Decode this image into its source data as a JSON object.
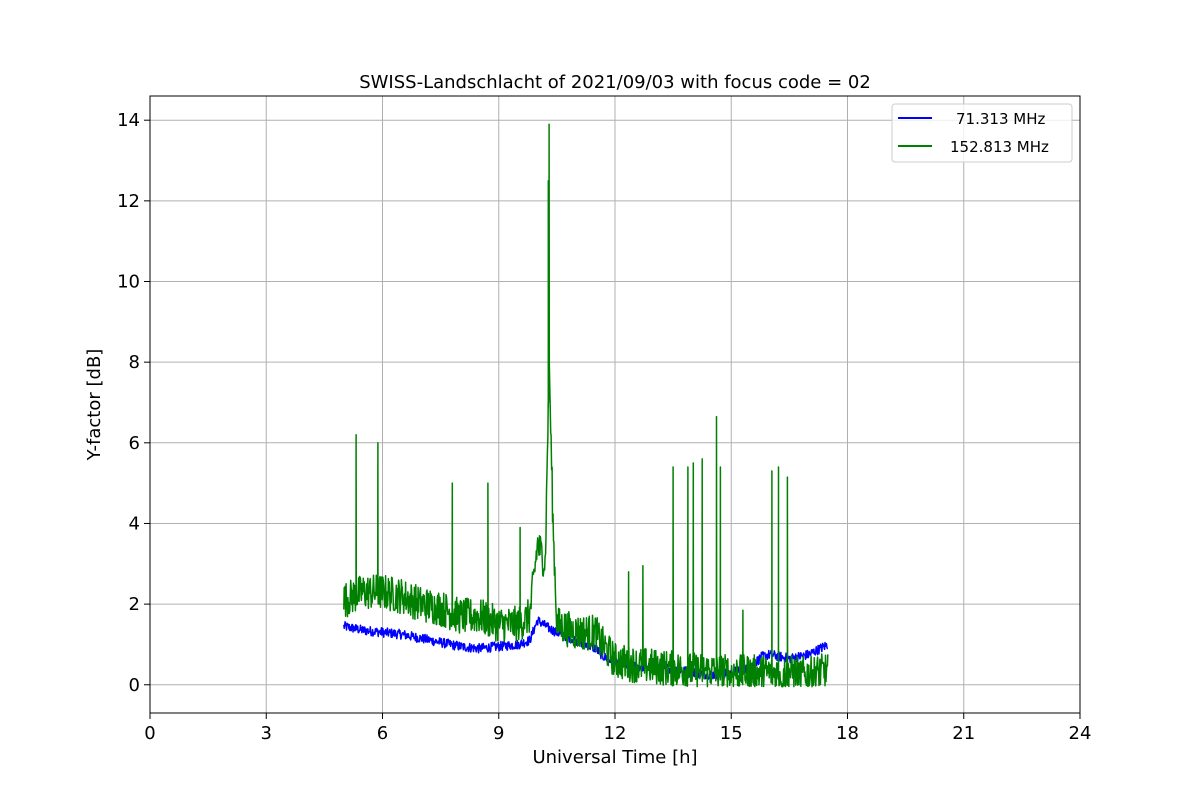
{
  "chart_data": {
    "type": "line",
    "title": "SWISS-Landschlacht of 2021/09/03 with focus code = 02",
    "xlabel": "Universal Time [h]",
    "ylabel": "Y-factor [dB]",
    "xlim": [
      0,
      24
    ],
    "ylim": [
      -0.7,
      14.6
    ],
    "xticks": [
      0,
      3,
      6,
      9,
      12,
      15,
      18,
      21,
      24
    ],
    "yticks": [
      0,
      2,
      4,
      6,
      8,
      10,
      12,
      14
    ],
    "grid": true,
    "legend_position": "top-right",
    "series": [
      {
        "name": "71.313 MHz",
        "color": "#0000ff",
        "noise_amplitude": 0.12,
        "x": [
          5.0,
          5.5,
          6.0,
          6.5,
          7.0,
          7.5,
          8.0,
          8.5,
          9.0,
          9.5,
          9.8,
          10.0,
          10.3,
          10.5,
          11.0,
          11.5,
          11.7,
          12.0,
          12.5,
          13.0,
          13.5,
          14.0,
          14.5,
          15.0,
          15.5,
          15.8,
          16.0,
          16.5,
          17.0,
          17.5
        ],
        "y": [
          1.45,
          1.35,
          1.3,
          1.25,
          1.15,
          1.05,
          0.95,
          0.9,
          0.95,
          1.0,
          1.1,
          1.6,
          1.4,
          1.3,
          1.1,
          0.9,
          0.7,
          0.55,
          0.45,
          0.45,
          0.4,
          0.3,
          0.25,
          0.3,
          0.45,
          0.7,
          0.75,
          0.65,
          0.75,
          1.0
        ]
      },
      {
        "name": "152.813 MHz",
        "color": "#008000",
        "noise_amplitude": 0.45,
        "x": [
          5.0,
          5.5,
          6.0,
          6.5,
          7.0,
          7.5,
          8.0,
          8.5,
          9.0,
          9.5,
          9.8,
          10.0,
          10.2,
          10.3,
          10.4,
          10.5,
          11.0,
          11.5,
          11.6,
          12.0,
          12.5,
          13.0,
          13.5,
          14.0,
          14.5,
          15.0,
          15.5,
          16.0,
          16.5,
          17.0,
          17.5
        ],
        "y": [
          2.1,
          2.3,
          2.3,
          2.2,
          2.0,
          1.9,
          1.7,
          1.7,
          1.5,
          1.5,
          1.7,
          3.5,
          3.0,
          8.0,
          4.0,
          1.5,
          1.3,
          1.3,
          1.1,
          0.6,
          0.5,
          0.45,
          0.4,
          0.35,
          0.35,
          0.3,
          0.3,
          0.3,
          0.3,
          0.25,
          0.35
        ],
        "spikes": [
          {
            "x": 5.32,
            "y": 6.2
          },
          {
            "x": 5.88,
            "y": 6.0
          },
          {
            "x": 7.8,
            "y": 5.0
          },
          {
            "x": 8.72,
            "y": 5.0
          },
          {
            "x": 9.55,
            "y": 3.9
          },
          {
            "x": 10.3,
            "y": 13.9
          },
          {
            "x": 10.28,
            "y": 12.5
          },
          {
            "x": 12.35,
            "y": 2.8
          },
          {
            "x": 12.72,
            "y": 2.95
          },
          {
            "x": 13.5,
            "y": 5.4
          },
          {
            "x": 13.88,
            "y": 5.4
          },
          {
            "x": 14.02,
            "y": 5.5
          },
          {
            "x": 14.25,
            "y": 5.6
          },
          {
            "x": 14.62,
            "y": 6.65
          },
          {
            "x": 14.72,
            "y": 5.4
          },
          {
            "x": 15.3,
            "y": 1.85
          },
          {
            "x": 16.05,
            "y": 5.3
          },
          {
            "x": 16.22,
            "y": 5.4
          },
          {
            "x": 16.45,
            "y": 5.15
          }
        ]
      }
    ]
  }
}
